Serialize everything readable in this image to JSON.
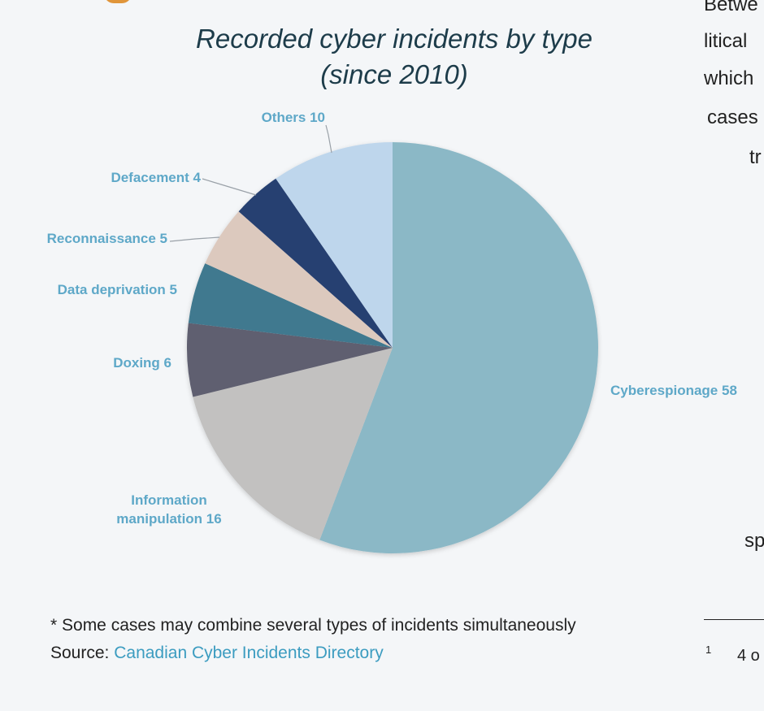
{
  "chart_data": {
    "type": "pie",
    "title": [
      "Recorded cyber incidents by type",
      "(since 2010)"
    ],
    "categories": [
      "Cyberespionage",
      "Information manipulation",
      "Doxing",
      "Data deprivation",
      "Reconnaissance",
      "Defacement",
      "Others"
    ],
    "values": [
      58,
      16,
      6,
      5,
      5,
      4,
      10
    ],
    "labels": [
      [
        "Cyberespionage 58"
      ],
      [
        "Information",
        "manipulation 16"
      ],
      [
        "Doxing 6"
      ],
      [
        "Data deprivation 5"
      ],
      [
        "Reconnaissance 5"
      ],
      [
        "Defacement 4"
      ],
      [
        "Others 10"
      ]
    ],
    "colors": [
      "#8bb8c6",
      "#c2c1c0",
      "#5e5e6f",
      "#41798f",
      "#dcc9be",
      "#263f71",
      "#bed6ec"
    ],
    "start": "12 o'clock",
    "direction": "clockwise"
  },
  "note": "* Some cases may combine several types of incidents simultaneously",
  "source": {
    "prefix": "Source: ",
    "link_text": "Canadian Cyber Incidents Directory"
  },
  "side_text": {
    "lines": [
      "Betwe",
      "litical",
      "which",
      "cases",
      "tr",
      "sp"
    ],
    "footnote_mark": "1",
    "footnote_text": "4 o"
  },
  "colors": {
    "title": "#1d3c4a",
    "label": "#5ea8c8",
    "link": "#3c9cc0",
    "background": "#f4f6f8"
  }
}
